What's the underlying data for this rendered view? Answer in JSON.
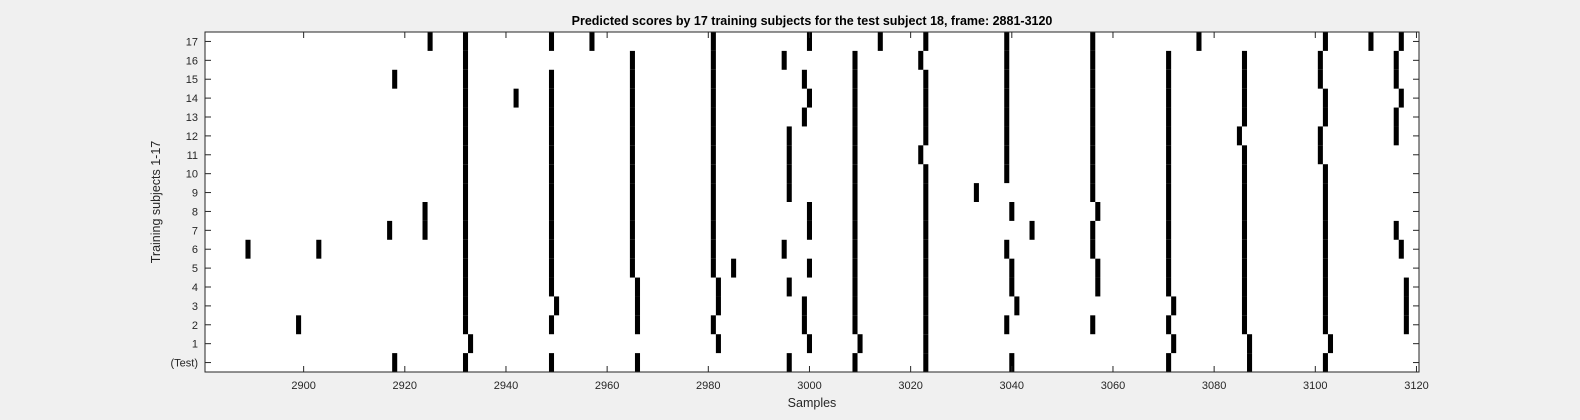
{
  "chart_data": {
    "type": "heatmap",
    "title": "Predicted scores by 17 training subjects for the test subject 18, frame: 2881-3120",
    "xlabel": "Samples",
    "ylabel": "Training subjects 1-17",
    "xlim": [
      2881,
      3120
    ],
    "x_ticks": [
      "2900",
      "2920",
      "2940",
      "2960",
      "2980",
      "3000",
      "3020",
      "3040",
      "3060",
      "3080",
      "3100",
      "3120"
    ],
    "y_ticks": [
      "(Test)",
      "1",
      "2",
      "3",
      "4",
      "5",
      "6",
      "7",
      "8",
      "9",
      "10",
      "11",
      "12",
      "13",
      "14",
      "15",
      "16",
      "17"
    ],
    "colors": {
      "background": "#ffffff",
      "mark": "#000000"
    },
    "rows": [
      {
        "label": "(Test)",
        "x": [
          2918,
          2932,
          2949,
          2966,
          2996,
          3009,
          3023,
          3040,
          3071,
          3087,
          3102
        ]
      },
      {
        "label": "1",
        "x": [
          2933,
          2982,
          3000,
          3010,
          3023,
          3072,
          3087,
          3103
        ]
      },
      {
        "label": "2",
        "x": [
          2899,
          2932,
          2949,
          2966,
          2981,
          2999,
          3009,
          3023,
          3039,
          3056,
          3071,
          3086,
          3102,
          3118
        ]
      },
      {
        "label": "3",
        "x": [
          2932,
          2950,
          2966,
          2982,
          2999,
          3009,
          3023,
          3041,
          3072,
          3086,
          3102,
          3118
        ]
      },
      {
        "label": "4",
        "x": [
          2932,
          2949,
          2966,
          2982,
          2996,
          3009,
          3023,
          3040,
          3057,
          3071,
          3086,
          3102,
          3118
        ]
      },
      {
        "label": "5",
        "x": [
          2932,
          2949,
          2965,
          2981,
          2985,
          3000,
          3009,
          3023,
          3040,
          3057,
          3071,
          3086,
          3102
        ]
      },
      {
        "label": "6",
        "x": [
          2889,
          2903,
          2932,
          2949,
          2965,
          2981,
          2995,
          3009,
          3023,
          3039,
          3056,
          3071,
          3086,
          3102,
          3117
        ]
      },
      {
        "label": "7",
        "x": [
          2917,
          2924,
          2932,
          2949,
          2965,
          2981,
          3000,
          3009,
          3023,
          3044,
          3056,
          3071,
          3086,
          3102,
          3116
        ]
      },
      {
        "label": "8",
        "x": [
          2924,
          2932,
          2949,
          2965,
          2981,
          3000,
          3009,
          3023,
          3040,
          3057,
          3071,
          3086,
          3102
        ]
      },
      {
        "label": "9",
        "x": [
          2932,
          2949,
          2965,
          2981,
          2996,
          3009,
          3023,
          3033,
          3056,
          3071,
          3086,
          3102
        ]
      },
      {
        "label": "10",
        "x": [
          2932,
          2949,
          2965,
          2981,
          2996,
          3009,
          3023,
          3039,
          3056,
          3071,
          3086,
          3102
        ]
      },
      {
        "label": "11",
        "x": [
          2932,
          2949,
          2965,
          2981,
          2996,
          3009,
          3022,
          3039,
          3056,
          3071,
          3086,
          3101
        ]
      },
      {
        "label": "12",
        "x": [
          2932,
          2949,
          2965,
          2981,
          2996,
          3009,
          3023,
          3039,
          3056,
          3071,
          3085,
          3101,
          3116
        ]
      },
      {
        "label": "13",
        "x": [
          2932,
          2949,
          2965,
          2981,
          2999,
          3009,
          3023,
          3039,
          3056,
          3071,
          3086,
          3102,
          3116
        ]
      },
      {
        "label": "14",
        "x": [
          2932,
          2942,
          2949,
          2965,
          2981,
          3000,
          3009,
          3023,
          3039,
          3056,
          3071,
          3086,
          3102,
          3117
        ]
      },
      {
        "label": "15",
        "x": [
          2918,
          2932,
          2949,
          2965,
          2981,
          2999,
          3009,
          3023,
          3039,
          3056,
          3071,
          3086,
          3101,
          3116
        ]
      },
      {
        "label": "16",
        "x": [
          2932,
          2965,
          2981,
          2995,
          3009,
          3022,
          3039,
          3056,
          3071,
          3086,
          3101,
          3116
        ]
      },
      {
        "label": "17",
        "x": [
          2925,
          2932,
          2949,
          2957,
          2981,
          3000,
          3014,
          3023,
          3039,
          3056,
          3077,
          3102,
          3111,
          3117
        ]
      }
    ]
  }
}
